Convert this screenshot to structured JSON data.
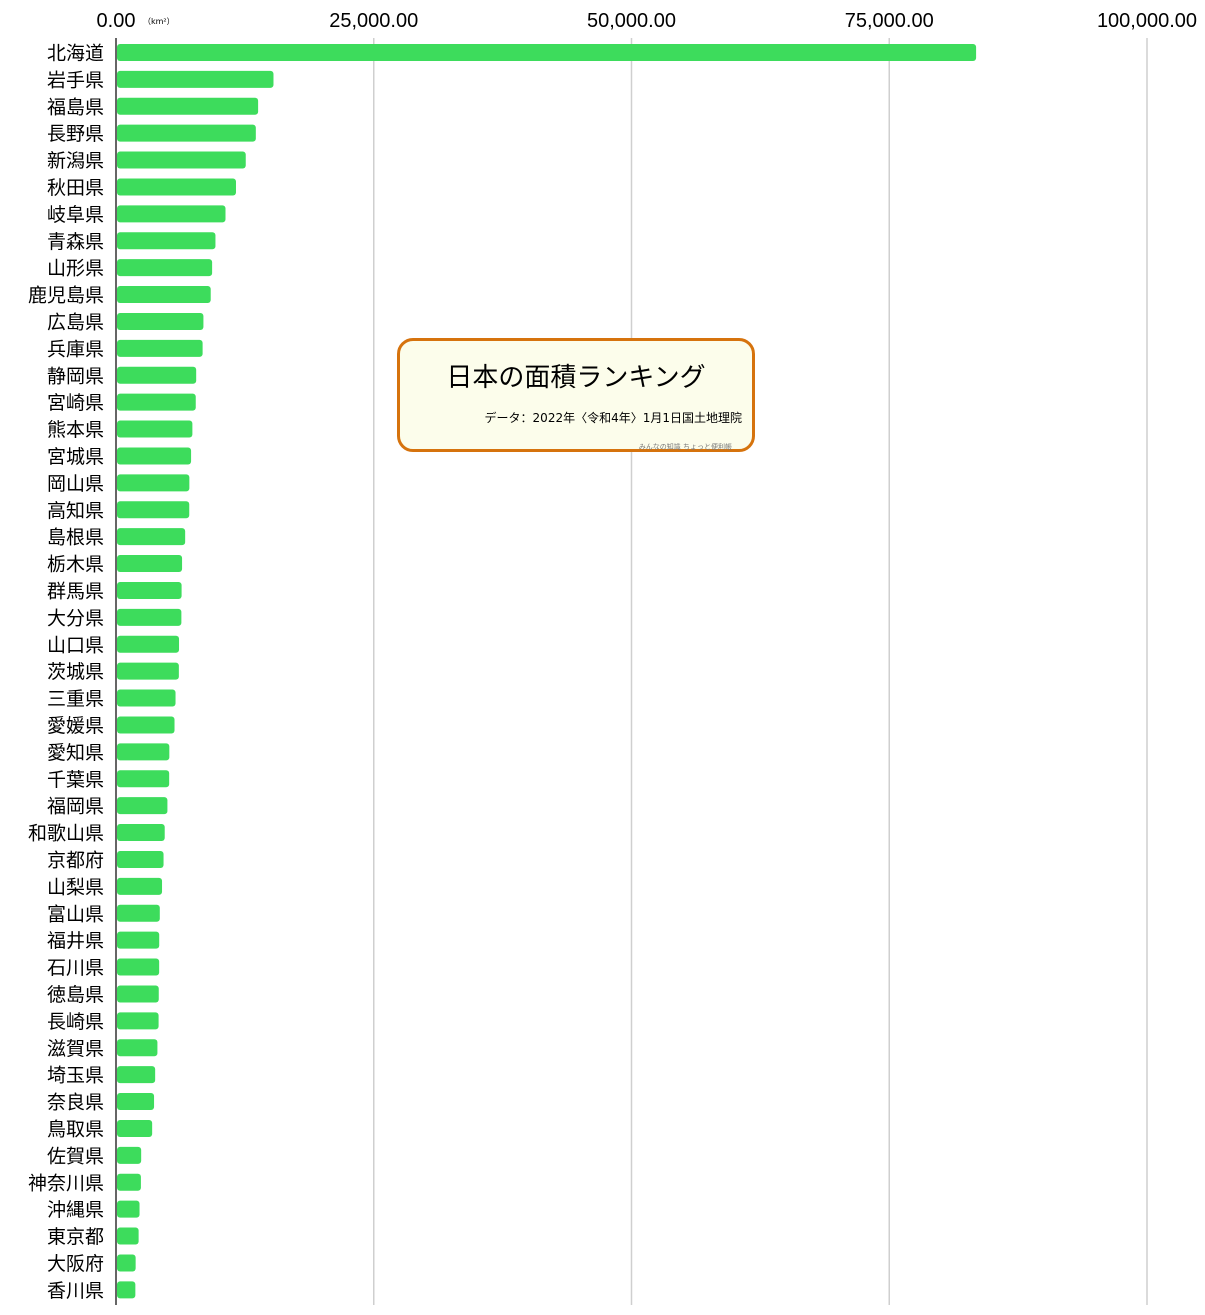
{
  "chart_data": {
    "type": "bar",
    "orientation": "horizontal",
    "title": "日本の面積ランキング",
    "source": "データ：2022年〈令和4年〉1月1日国土地理院",
    "credit": "みんなの知識 ちょっと便利帳",
    "unit": "（km²）",
    "xlim": [
      0,
      100000
    ],
    "x_ticks": [
      "0.00",
      "25,000.00",
      "50,000.00",
      "75,000.00",
      "100,000.00"
    ],
    "x_tick_values": [
      0,
      25000,
      50000,
      75000,
      100000
    ],
    "grid": true,
    "bar_color": "#3ddc5c",
    "categories": [
      "北海道",
      "岩手県",
      "福島県",
      "長野県",
      "新潟県",
      "秋田県",
      "岐阜県",
      "青森県",
      "山形県",
      "鹿児島県",
      "広島県",
      "兵庫県",
      "静岡県",
      "宮崎県",
      "熊本県",
      "宮城県",
      "岡山県",
      "高知県",
      "島根県",
      "栃木県",
      "群馬県",
      "大分県",
      "山口県",
      "茨城県",
      "三重県",
      "愛媛県",
      "愛知県",
      "千葉県",
      "福岡県",
      "和歌山県",
      "京都府",
      "山梨県",
      "富山県",
      "福井県",
      "石川県",
      "徳島県",
      "長崎県",
      "滋賀県",
      "埼玉県",
      "奈良県",
      "鳥取県",
      "佐賀県",
      "神奈川県",
      "沖縄県",
      "東京都",
      "大阪府",
      "香川県"
    ],
    "values": [
      83424,
      15275,
      13784,
      13562,
      12584,
      11638,
      10621,
      9646,
      9323,
      9187,
      8479,
      8401,
      7777,
      7735,
      7409,
      7282,
      7115,
      7104,
      6708,
      6408,
      6362,
      6341,
      6113,
      6097,
      5774,
      5676,
      5173,
      5157,
      4987,
      4725,
      4612,
      4465,
      4248,
      4191,
      4186,
      4147,
      4131,
      4017,
      3798,
      3691,
      3507,
      2441,
      2416,
      2282,
      2194,
      1905,
      1877
    ]
  }
}
